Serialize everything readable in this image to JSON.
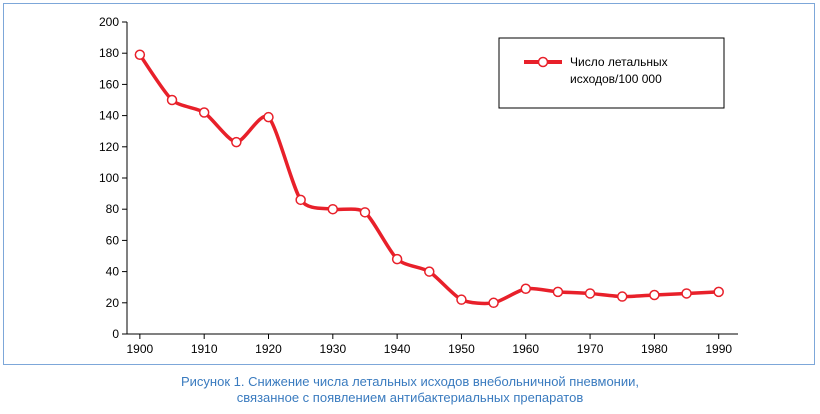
{
  "chart_data": {
    "type": "line",
    "title": "",
    "xlabel": "",
    "ylabel": "",
    "xlim": [
      1898,
      1993
    ],
    "ylim": [
      0,
      200
    ],
    "x_ticks": [
      1900,
      1910,
      1920,
      1930,
      1940,
      1950,
      1960,
      1970,
      1980,
      1990
    ],
    "y_ticks": [
      0,
      20,
      40,
      60,
      80,
      100,
      120,
      140,
      160,
      180,
      200
    ],
    "grid": false,
    "legend_position": "top-right",
    "series": [
      {
        "name_lines": [
          "Число летальных",
          "исходов/100 000"
        ],
        "color": "#e8202a",
        "marker_fill": "#ffffff",
        "x": [
          1900,
          1905,
          1910,
          1915,
          1920,
          1925,
          1930,
          1935,
          1940,
          1945,
          1950,
          1955,
          1960,
          1965,
          1970,
          1975,
          1980,
          1985,
          1990
        ],
        "y": [
          179,
          150,
          142,
          123,
          139,
          86,
          80,
          78,
          48,
          40,
          22,
          20,
          29,
          27,
          26,
          24,
          25,
          26,
          27
        ]
      }
    ]
  },
  "caption": {
    "line1": "Рисунок 1.  Снижение числа летальных исходов внебольничной пневмонии,",
    "line2": "связанное с появлением антибактериальных препаратов"
  },
  "colors": {
    "frame_border": "#7da7d9",
    "caption_text": "#3a7bbf",
    "axis": "#000000"
  }
}
